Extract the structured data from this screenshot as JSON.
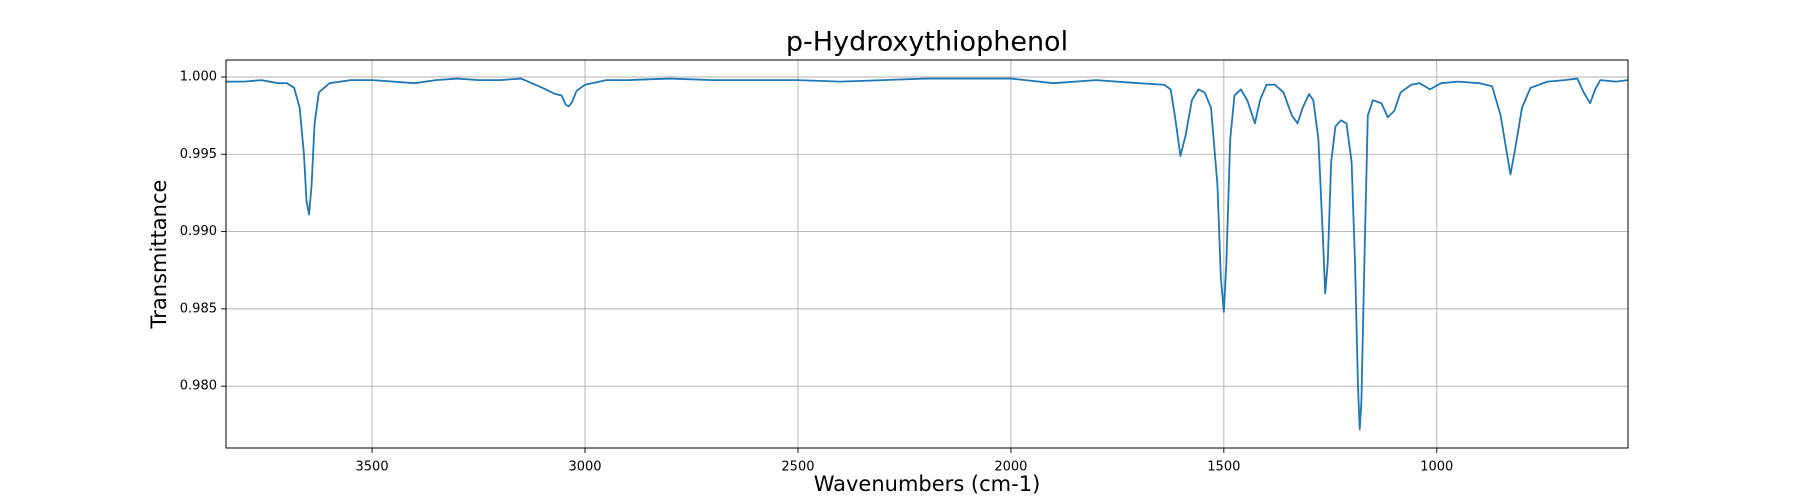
{
  "chart_data": {
    "type": "line",
    "title": "p-Hydroxythiophenol",
    "xlabel": "Wavenumbers (cm-1)",
    "ylabel": "Transmittance",
    "color": "#1f77b4",
    "grid": true,
    "xlim": [
      3843,
      551
    ],
    "ylim": [
      0.976,
      1.0011
    ],
    "xticks": [
      3500,
      3000,
      2500,
      2000,
      1500,
      1000
    ],
    "yticks": [
      {
        "value": 0.98,
        "label": "0.980"
      },
      {
        "value": 0.985,
        "label": "0.985"
      },
      {
        "value": 0.99,
        "label": "0.990"
      },
      {
        "value": 0.995,
        "label": "0.995"
      },
      {
        "value": 1,
        "label": "1.000"
      }
    ],
    "x": [
      3843,
      3800,
      3760,
      3720,
      3700,
      3683,
      3670,
      3660,
      3654,
      3648,
      3642,
      3635,
      3625,
      3600,
      3550,
      3500,
      3450,
      3400,
      3350,
      3300,
      3250,
      3200,
      3150,
      3100,
      3070,
      3055,
      3045,
      3038,
      3030,
      3020,
      3000,
      2950,
      2900,
      2800,
      2700,
      2600,
      2500,
      2400,
      2300,
      2200,
      2100,
      2000,
      1900,
      1800,
      1700,
      1640,
      1625,
      1615,
      1602,
      1590,
      1575,
      1560,
      1545,
      1530,
      1515,
      1507,
      1500,
      1494,
      1485,
      1475,
      1460,
      1445,
      1427,
      1415,
      1400,
      1380,
      1360,
      1340,
      1327,
      1315,
      1300,
      1290,
      1278,
      1268,
      1262,
      1256,
      1248,
      1238,
      1225,
      1212,
      1200,
      1192,
      1185,
      1181,
      1177,
      1170,
      1162,
      1150,
      1130,
      1115,
      1100,
      1085,
      1060,
      1040,
      1016,
      990,
      950,
      900,
      870,
      850,
      835,
      827,
      815,
      800,
      780,
      740,
      700,
      670,
      655,
      640,
      628,
      616,
      580,
      551
    ],
    "values": [
      0.9997,
      0.9997,
      0.9998,
      0.9996,
      0.9996,
      0.9993,
      0.998,
      0.995,
      0.992,
      0.9911,
      0.993,
      0.997,
      0.999,
      0.9996,
      0.9998,
      0.9998,
      0.9997,
      0.9996,
      0.9998,
      0.9999,
      0.9998,
      0.9998,
      0.9999,
      0.9993,
      0.9989,
      0.9988,
      0.9982,
      0.9981,
      0.9984,
      0.9991,
      0.9995,
      0.9998,
      0.9998,
      0.9999,
      0.9998,
      0.9998,
      0.9998,
      0.9997,
      0.9998,
      0.9999,
      0.9999,
      0.9999,
      0.9996,
      0.9998,
      0.9996,
      0.9995,
      0.9992,
      0.9975,
      0.9949,
      0.9962,
      0.9985,
      0.9992,
      0.999,
      0.998,
      0.993,
      0.987,
      0.9848,
      0.988,
      0.996,
      0.9988,
      0.9992,
      0.9985,
      0.997,
      0.9985,
      0.9995,
      0.9995,
      0.999,
      0.9975,
      0.997,
      0.998,
      0.9989,
      0.9985,
      0.996,
      0.99,
      0.986,
      0.988,
      0.9945,
      0.9968,
      0.9972,
      0.997,
      0.9945,
      0.988,
      0.98,
      0.9772,
      0.979,
      0.988,
      0.9975,
      0.9985,
      0.9983,
      0.9974,
      0.9978,
      0.999,
      0.9995,
      0.9996,
      0.9992,
      0.9996,
      0.9997,
      0.9996,
      0.9994,
      0.9975,
      0.995,
      0.9937,
      0.9955,
      0.998,
      0.9993,
      0.9997,
      0.9998,
      0.9999,
      0.999,
      0.9983,
      0.9992,
      0.9998,
      0.9997,
      0.9998
    ]
  }
}
